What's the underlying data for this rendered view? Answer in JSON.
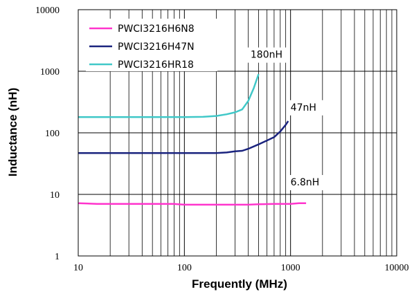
{
  "chart_data": {
    "type": "line",
    "xlabel": "Frequently (MHz)",
    "ylabel": "Inductance (nH)",
    "xscale": "log",
    "yscale": "log",
    "xlim": [
      10,
      10000
    ],
    "ylim": [
      1,
      10000
    ],
    "x_ticks": [
      "10",
      "100",
      "1000",
      "10000"
    ],
    "y_ticks": [
      "10000",
      "1000",
      "100",
      "10",
      "1"
    ],
    "grid": true,
    "legend_position": "top-left",
    "series": [
      {
        "name": "PWCI3216H6N8",
        "color": "#ff33cc",
        "x": [
          10,
          15,
          20,
          30,
          50,
          80,
          100,
          150,
          200,
          300,
          400,
          500,
          700,
          900,
          1000,
          1200,
          1400
        ],
        "y": [
          7.2,
          7.0,
          7.0,
          7.0,
          7.0,
          7.0,
          6.8,
          6.8,
          6.8,
          6.8,
          6.8,
          6.9,
          7.0,
          7.0,
          7.0,
          7.2,
          7.2
        ]
      },
      {
        "name": "PWCI3216H47N",
        "color": "#1a237e",
        "x": [
          10,
          20,
          30,
          50,
          100,
          150,
          200,
          250,
          300,
          350,
          400,
          500,
          600,
          700,
          800,
          900,
          950
        ],
        "y": [
          47,
          47,
          47,
          47,
          47,
          47,
          47,
          48,
          50,
          51,
          55,
          65,
          75,
          85,
          105,
          135,
          155
        ]
      },
      {
        "name": "PWCI3216HR18",
        "color": "#40c8c8",
        "x": [
          10,
          20,
          50,
          100,
          150,
          200,
          250,
          300,
          350,
          400,
          450,
          500
        ],
        "y": [
          180,
          180,
          180,
          180,
          182,
          188,
          200,
          215,
          240,
          330,
          530,
          900
        ]
      }
    ],
    "annotations": [
      {
        "text": "180nH",
        "x": 420,
        "y": 1650
      },
      {
        "text": "47nH",
        "x": 1000,
        "y": 230
      },
      {
        "text": "6.8nH",
        "x": 1000,
        "y": 14
      }
    ]
  }
}
